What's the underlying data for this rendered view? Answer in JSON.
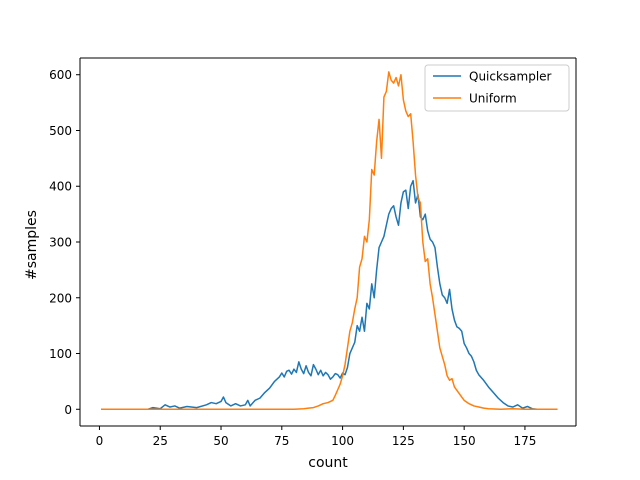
{
  "chart_data": {
    "type": "line",
    "xlabel": "count",
    "ylabel": "#samples",
    "xlim": [
      -8,
      196
    ],
    "ylim": [
      -30,
      630
    ],
    "x_ticks": [
      0,
      25,
      50,
      75,
      100,
      125,
      150,
      175
    ],
    "y_ticks": [
      0,
      100,
      200,
      300,
      400,
      500,
      600
    ],
    "x_tick_labels": [
      "0",
      "25",
      "50",
      "75",
      "100",
      "125",
      "150",
      "175"
    ],
    "y_tick_labels": [
      "0",
      "100",
      "200",
      "300",
      "400",
      "500",
      "600"
    ],
    "grid": false,
    "legend_position": "top-right",
    "series": [
      {
        "name": "Quicksampler",
        "color": "#1f77b4",
        "points": [
          [
            1,
            0
          ],
          [
            10,
            0
          ],
          [
            20,
            0
          ],
          [
            22,
            3
          ],
          [
            25,
            1
          ],
          [
            27,
            8
          ],
          [
            29,
            4
          ],
          [
            31,
            6
          ],
          [
            33,
            2
          ],
          [
            36,
            5
          ],
          [
            40,
            3
          ],
          [
            44,
            8
          ],
          [
            46,
            12
          ],
          [
            48,
            10
          ],
          [
            50,
            14
          ],
          [
            51,
            22
          ],
          [
            52,
            12
          ],
          [
            54,
            6
          ],
          [
            56,
            10
          ],
          [
            58,
            6
          ],
          [
            60,
            8
          ],
          [
            61,
            16
          ],
          [
            62,
            6
          ],
          [
            64,
            16
          ],
          [
            66,
            20
          ],
          [
            68,
            30
          ],
          [
            70,
            38
          ],
          [
            72,
            50
          ],
          [
            74,
            58
          ],
          [
            75,
            65
          ],
          [
            76,
            58
          ],
          [
            77,
            68
          ],
          [
            78,
            70
          ],
          [
            79,
            63
          ],
          [
            80,
            72
          ],
          [
            81,
            66
          ],
          [
            82,
            85
          ],
          [
            83,
            72
          ],
          [
            84,
            64
          ],
          [
            85,
            78
          ],
          [
            86,
            66
          ],
          [
            87,
            60
          ],
          [
            88,
            80
          ],
          [
            89,
            72
          ],
          [
            90,
            62
          ],
          [
            91,
            70
          ],
          [
            92,
            60
          ],
          [
            93,
            66
          ],
          [
            94,
            62
          ],
          [
            95,
            54
          ],
          [
            96,
            58
          ],
          [
            97,
            64
          ],
          [
            98,
            62
          ],
          [
            99,
            56
          ],
          [
            100,
            65
          ],
          [
            101,
            62
          ],
          [
            102,
            75
          ],
          [
            103,
            100
          ],
          [
            104,
            110
          ],
          [
            105,
            120
          ],
          [
            106,
            150
          ],
          [
            107,
            140
          ],
          [
            108,
            165
          ],
          [
            109,
            140
          ],
          [
            110,
            190
          ],
          [
            111,
            180
          ],
          [
            112,
            225
          ],
          [
            113,
            200
          ],
          [
            114,
            250
          ],
          [
            115,
            290
          ],
          [
            116,
            300
          ],
          [
            117,
            310
          ],
          [
            118,
            330
          ],
          [
            119,
            350
          ],
          [
            120,
            360
          ],
          [
            121,
            365
          ],
          [
            122,
            345
          ],
          [
            123,
            330
          ],
          [
            124,
            370
          ],
          [
            125,
            390
          ],
          [
            126,
            393
          ],
          [
            127,
            360
          ],
          [
            128,
            400
          ],
          [
            129,
            410
          ],
          [
            130,
            370
          ],
          [
            131,
            385
          ],
          [
            132,
            345
          ],
          [
            133,
            340
          ],
          [
            134,
            350
          ],
          [
            135,
            320
          ],
          [
            136,
            305
          ],
          [
            137,
            300
          ],
          [
            138,
            290
          ],
          [
            139,
            255
          ],
          [
            140,
            225
          ],
          [
            141,
            205
          ],
          [
            142,
            200
          ],
          [
            143,
            190
          ],
          [
            144,
            215
          ],
          [
            145,
            180
          ],
          [
            146,
            160
          ],
          [
            147,
            148
          ],
          [
            148,
            145
          ],
          [
            149,
            140
          ],
          [
            150,
            118
          ],
          [
            151,
            110
          ],
          [
            152,
            100
          ],
          [
            153,
            95
          ],
          [
            154,
            85
          ],
          [
            155,
            70
          ],
          [
            156,
            62
          ],
          [
            158,
            52
          ],
          [
            160,
            40
          ],
          [
            162,
            30
          ],
          [
            164,
            20
          ],
          [
            166,
            12
          ],
          [
            168,
            6
          ],
          [
            170,
            4
          ],
          [
            172,
            8
          ],
          [
            174,
            2
          ],
          [
            176,
            5
          ],
          [
            178,
            1
          ],
          [
            180,
            0
          ],
          [
            185,
            0
          ],
          [
            188,
            0
          ]
        ]
      },
      {
        "name": "Uniform",
        "color": "#ff7f0e",
        "points": [
          [
            1,
            0
          ],
          [
            20,
            0
          ],
          [
            40,
            0
          ],
          [
            60,
            0
          ],
          [
            70,
            0
          ],
          [
            80,
            0
          ],
          [
            84,
            1
          ],
          [
            86,
            2
          ],
          [
            88,
            3
          ],
          [
            90,
            6
          ],
          [
            92,
            10
          ],
          [
            94,
            12
          ],
          [
            96,
            16
          ],
          [
            97,
            25
          ],
          [
            98,
            35
          ],
          [
            99,
            45
          ],
          [
            100,
            60
          ],
          [
            101,
            80
          ],
          [
            102,
            110
          ],
          [
            103,
            140
          ],
          [
            104,
            155
          ],
          [
            105,
            180
          ],
          [
            106,
            200
          ],
          [
            107,
            255
          ],
          [
            108,
            270
          ],
          [
            109,
            310
          ],
          [
            110,
            300
          ],
          [
            111,
            340
          ],
          [
            112,
            430
          ],
          [
            113,
            420
          ],
          [
            114,
            480
          ],
          [
            115,
            520
          ],
          [
            116,
            450
          ],
          [
            117,
            560
          ],
          [
            118,
            570
          ],
          [
            119,
            605
          ],
          [
            120,
            590
          ],
          [
            121,
            585
          ],
          [
            122,
            595
          ],
          [
            123,
            580
          ],
          [
            124,
            600
          ],
          [
            125,
            555
          ],
          [
            126,
            535
          ],
          [
            127,
            525
          ],
          [
            128,
            530
          ],
          [
            129,
            480
          ],
          [
            130,
            420
          ],
          [
            131,
            380
          ],
          [
            132,
            370
          ],
          [
            133,
            300
          ],
          [
            134,
            265
          ],
          [
            135,
            270
          ],
          [
            136,
            225
          ],
          [
            137,
            200
          ],
          [
            138,
            170
          ],
          [
            139,
            140
          ],
          [
            140,
            110
          ],
          [
            141,
            95
          ],
          [
            142,
            80
          ],
          [
            143,
            60
          ],
          [
            144,
            52
          ],
          [
            145,
            55
          ],
          [
            146,
            40
          ],
          [
            147,
            34
          ],
          [
            148,
            28
          ],
          [
            149,
            22
          ],
          [
            150,
            16
          ],
          [
            152,
            10
          ],
          [
            154,
            6
          ],
          [
            156,
            4
          ],
          [
            158,
            2
          ],
          [
            160,
            1
          ],
          [
            165,
            0
          ],
          [
            170,
            1
          ],
          [
            175,
            0
          ],
          [
            180,
            0
          ],
          [
            185,
            0
          ],
          [
            188,
            0
          ]
        ]
      }
    ]
  }
}
